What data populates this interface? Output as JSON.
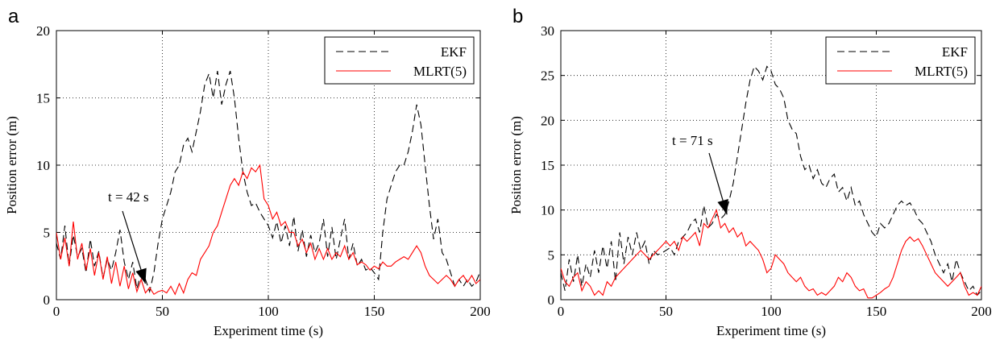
{
  "chart_data": [
    {
      "panel_label": "a",
      "type": "line",
      "xlabel": "Experiment time (s)",
      "ylabel": "Position error (m)",
      "xlim": [
        0,
        200
      ],
      "ylim": [
        0,
        20
      ],
      "xticks": [
        "0",
        "50",
        "100",
        "150",
        "200"
      ],
      "yticks": [
        "0",
        "5",
        "10",
        "15",
        "20"
      ],
      "grid": true,
      "legend_position": "top-right",
      "annotation": {
        "text": "t = 42 s",
        "x": 42,
        "y": 1.2
      },
      "series": [
        {
          "name": "EKF",
          "color": "#000000",
          "style": "dashed",
          "x": [
            0,
            2,
            4,
            6,
            8,
            10,
            12,
            14,
            16,
            18,
            20,
            22,
            24,
            26,
            28,
            30,
            32,
            34,
            36,
            38,
            40,
            42,
            44,
            46,
            48,
            50,
            52,
            54,
            56,
            58,
            60,
            62,
            64,
            66,
            68,
            70,
            72,
            74,
            76,
            78,
            80,
            82,
            84,
            86,
            88,
            90,
            92,
            94,
            96,
            98,
            100,
            102,
            104,
            106,
            108,
            110,
            112,
            114,
            116,
            118,
            120,
            122,
            124,
            126,
            128,
            130,
            132,
            134,
            136,
            138,
            140,
            142,
            144,
            146,
            148,
            150,
            152,
            154,
            156,
            158,
            160,
            162,
            164,
            166,
            168,
            170,
            172,
            174,
            176,
            178,
            180,
            182,
            184,
            186,
            188,
            190,
            192,
            194,
            196,
            198,
            200
          ],
          "values": [
            4.2,
            3.0,
            5.5,
            2.5,
            4.8,
            3.2,
            3.8,
            2.0,
            4.5,
            2.5,
            3.6,
            1.6,
            3.0,
            2.2,
            3.5,
            5.2,
            2.8,
            1.5,
            2.8,
            0.8,
            2.0,
            1.5,
            0.6,
            2.0,
            4.2,
            6.0,
            7.0,
            8.0,
            9.5,
            10.0,
            11.5,
            12.0,
            11.0,
            12.5,
            14.0,
            16.0,
            16.8,
            15.0,
            17.0,
            14.5,
            16.0,
            17.0,
            15.0,
            12.0,
            9.5,
            8.0,
            7.0,
            7.2,
            6.5,
            6.0,
            5.5,
            4.6,
            5.8,
            4.2,
            5.5,
            4.0,
            6.2,
            3.6,
            5.2,
            3.2,
            4.8,
            3.5,
            4.2,
            6.0,
            3.2,
            5.4,
            3.0,
            4.5,
            6.0,
            3.0,
            4.2,
            2.5,
            3.0,
            2.2,
            2.4,
            2.0,
            1.5,
            5.0,
            7.5,
            8.5,
            9.5,
            10.0,
            10.0,
            11.0,
            12.5,
            14.5,
            13.0,
            10.0,
            7.0,
            4.5,
            6.0,
            3.5,
            3.0,
            2.0,
            1.0,
            1.5,
            1.0,
            1.5,
            1.0,
            1.3,
            2.1
          ]
        },
        {
          "name": "MLRT(5)",
          "color": "#ff0000",
          "style": "solid",
          "x": [
            0,
            2,
            4,
            6,
            8,
            10,
            12,
            14,
            16,
            18,
            20,
            22,
            24,
            26,
            28,
            30,
            32,
            34,
            36,
            38,
            40,
            42,
            44,
            46,
            48,
            50,
            52,
            54,
            56,
            58,
            60,
            62,
            64,
            66,
            68,
            70,
            72,
            74,
            76,
            78,
            80,
            82,
            84,
            86,
            88,
            90,
            92,
            94,
            96,
            98,
            100,
            102,
            104,
            106,
            108,
            110,
            112,
            114,
            116,
            118,
            120,
            122,
            124,
            126,
            128,
            130,
            132,
            134,
            136,
            138,
            140,
            142,
            144,
            146,
            148,
            150,
            152,
            154,
            156,
            158,
            160,
            162,
            164,
            166,
            168,
            170,
            172,
            174,
            176,
            178,
            180,
            182,
            184,
            186,
            188,
            190,
            192,
            194,
            196,
            198,
            200
          ],
          "values": [
            5.0,
            3.0,
            4.6,
            2.5,
            5.8,
            3.0,
            4.2,
            2.2,
            3.8,
            1.8,
            3.5,
            1.5,
            3.2,
            1.2,
            2.8,
            1.0,
            2.5,
            0.8,
            2.0,
            0.6,
            1.5,
            0.5,
            0.9,
            0.4,
            0.6,
            0.7,
            0.5,
            1.0,
            0.4,
            1.2,
            0.5,
            1.5,
            2.0,
            1.8,
            3.0,
            3.5,
            4.0,
            5.0,
            5.5,
            6.5,
            7.5,
            8.5,
            9.0,
            8.5,
            9.5,
            9.0,
            9.8,
            9.5,
            10.0,
            7.5,
            7.0,
            6.0,
            6.5,
            5.5,
            5.8,
            5.0,
            5.0,
            4.0,
            4.5,
            3.5,
            4.2,
            3.0,
            3.8,
            3.0,
            3.8,
            3.0,
            3.5,
            3.2,
            4.0,
            3.0,
            3.5,
            2.6,
            2.8,
            2.6,
            2.2,
            2.5,
            2.3,
            2.8,
            2.5,
            2.5,
            2.8,
            3.0,
            3.2,
            3.0,
            3.5,
            4.0,
            3.5,
            2.5,
            1.8,
            1.5,
            1.2,
            1.5,
            1.8,
            1.5,
            1.0,
            1.5,
            1.8,
            1.3,
            1.8,
            1.2,
            1.5
          ]
        }
      ]
    },
    {
      "panel_label": "b",
      "type": "line",
      "xlabel": "Experiment time (s)",
      "ylabel": "Position error (m)",
      "xlim": [
        0,
        200
      ],
      "ylim": [
        0,
        30
      ],
      "xticks": [
        "0",
        "50",
        "100",
        "150",
        "200"
      ],
      "yticks": [
        "0",
        "5",
        "10",
        "15",
        "20",
        "25",
        "30"
      ],
      "grid": true,
      "legend_position": "top-right",
      "annotation": {
        "text": "t = 71 s",
        "x": 79,
        "y": 9.5
      },
      "series": [
        {
          "name": "EKF",
          "color": "#000000",
          "style": "dashed",
          "x": [
            0,
            2,
            4,
            6,
            8,
            10,
            12,
            14,
            16,
            18,
            20,
            22,
            24,
            26,
            28,
            30,
            32,
            34,
            36,
            38,
            40,
            42,
            44,
            46,
            48,
            50,
            52,
            54,
            56,
            58,
            60,
            62,
            64,
            66,
            68,
            70,
            72,
            74,
            76,
            78,
            80,
            82,
            84,
            86,
            88,
            90,
            92,
            94,
            96,
            98,
            100,
            102,
            104,
            106,
            108,
            110,
            112,
            114,
            116,
            118,
            120,
            122,
            124,
            126,
            128,
            130,
            132,
            134,
            136,
            138,
            140,
            142,
            144,
            146,
            148,
            150,
            152,
            154,
            156,
            158,
            160,
            162,
            164,
            166,
            168,
            170,
            172,
            174,
            176,
            178,
            180,
            182,
            184,
            186,
            188,
            190,
            192,
            194,
            196,
            198,
            200
          ],
          "values": [
            3.0,
            1.0,
            4.5,
            2.0,
            5.0,
            1.5,
            4.0,
            2.5,
            5.5,
            3.0,
            6.0,
            3.5,
            6.5,
            2.0,
            7.5,
            4.0,
            7.0,
            5.0,
            7.5,
            5.5,
            6.5,
            4.0,
            5.5,
            5.0,
            5.2,
            5.5,
            5.8,
            5.0,
            6.5,
            7.0,
            7.5,
            8.5,
            9.0,
            7.5,
            10.5,
            8.0,
            8.5,
            9.5,
            9.0,
            9.5,
            11.0,
            13.0,
            16.0,
            19.0,
            22.0,
            24.5,
            26.0,
            25.5,
            24.5,
            26.0,
            25.5,
            24.0,
            23.5,
            22.5,
            20.0,
            19.0,
            18.5,
            16.0,
            14.5,
            15.0,
            13.5,
            14.5,
            13.0,
            12.5,
            13.5,
            14.0,
            12.0,
            12.5,
            11.0,
            12.5,
            10.5,
            11.0,
            9.5,
            8.5,
            7.5,
            7.0,
            8.5,
            8.0,
            8.5,
            9.5,
            10.5,
            11.0,
            10.5,
            10.8,
            10.0,
            9.0,
            8.5,
            7.5,
            6.5,
            5.0,
            4.0,
            3.0,
            4.0,
            2.0,
            4.5,
            3.0,
            2.0,
            1.0,
            1.5,
            0.5,
            1.0
          ]
        },
        {
          "name": "MLRT(5)",
          "color": "#ff0000",
          "style": "solid",
          "x": [
            0,
            2,
            4,
            6,
            8,
            10,
            12,
            14,
            16,
            18,
            20,
            22,
            24,
            26,
            28,
            30,
            32,
            34,
            36,
            38,
            40,
            42,
            44,
            46,
            48,
            50,
            52,
            54,
            56,
            58,
            60,
            62,
            64,
            66,
            68,
            70,
            72,
            74,
            76,
            78,
            80,
            82,
            84,
            86,
            88,
            90,
            92,
            94,
            96,
            98,
            100,
            102,
            104,
            106,
            108,
            110,
            112,
            114,
            116,
            118,
            120,
            122,
            124,
            126,
            128,
            130,
            132,
            134,
            136,
            138,
            140,
            142,
            144,
            146,
            148,
            150,
            152,
            154,
            156,
            158,
            160,
            162,
            164,
            166,
            168,
            170,
            172,
            174,
            176,
            178,
            180,
            182,
            184,
            186,
            188,
            190,
            192,
            194,
            196,
            198,
            200
          ],
          "values": [
            3.5,
            2.0,
            1.5,
            2.5,
            3.0,
            1.0,
            2.0,
            1.5,
            0.5,
            1.0,
            0.5,
            2.0,
            1.5,
            2.5,
            3.0,
            3.5,
            4.0,
            4.5,
            5.0,
            5.5,
            5.0,
            4.5,
            5.0,
            5.5,
            6.0,
            6.5,
            6.0,
            6.5,
            5.5,
            7.0,
            6.5,
            7.0,
            7.5,
            6.0,
            8.5,
            8.0,
            9.0,
            10.0,
            8.0,
            8.5,
            7.5,
            8.0,
            7.0,
            7.5,
            6.0,
            6.5,
            6.0,
            5.5,
            4.5,
            3.0,
            3.5,
            5.0,
            4.5,
            4.0,
            3.0,
            2.5,
            2.0,
            2.5,
            1.5,
            1.0,
            1.2,
            0.5,
            0.8,
            0.5,
            1.0,
            1.5,
            2.5,
            2.0,
            3.0,
            2.5,
            1.5,
            1.0,
            1.2,
            0.2,
            0.2,
            0.5,
            0.8,
            1.2,
            1.5,
            2.5,
            4.0,
            5.5,
            6.5,
            7.0,
            6.5,
            6.8,
            6.0,
            5.0,
            4.0,
            3.0,
            2.5,
            2.0,
            1.5,
            2.0,
            2.5,
            3.0,
            1.5,
            0.5,
            0.8,
            0.5,
            1.5
          ]
        }
      ]
    }
  ]
}
